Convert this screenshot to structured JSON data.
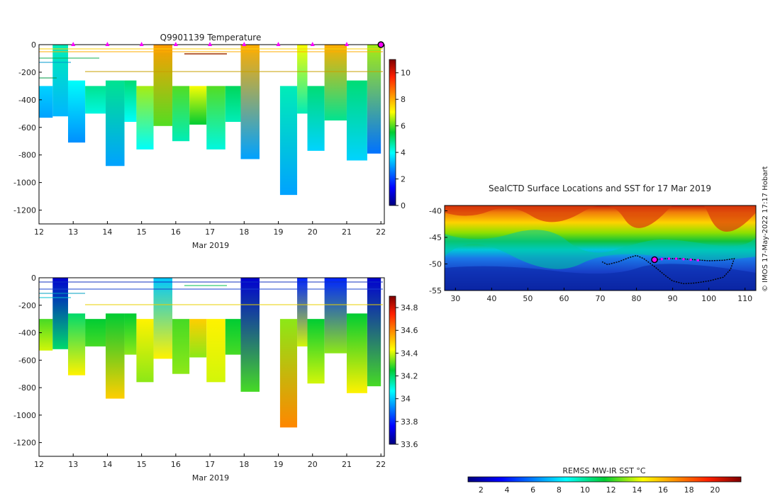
{
  "chart_data": [
    {
      "type": "heatmap",
      "panel": "temperature-section",
      "title": "Q9901139  Temperature",
      "xlabel": "Mar 2019",
      "ylabel": "",
      "xlim": [
        12,
        22.1
      ],
      "ylim": [
        -1300,
        0
      ],
      "xticks": [
        12,
        13,
        14,
        15,
        16,
        17,
        18,
        19,
        20,
        21,
        22
      ],
      "yticks": [
        0,
        -200,
        -400,
        -600,
        -800,
        -1000,
        -1200
      ],
      "colorbar": {
        "min": 0,
        "max": 11,
        "ticks": [
          0,
          2,
          4,
          6,
          8,
          10
        ]
      },
      "profile_markers_day": [
        13,
        14,
        15,
        16,
        17,
        18,
        19,
        20,
        21
      ],
      "current_marker_day": 22,
      "profiles": [
        {
          "x0": 12.0,
          "x1": 12.4,
          "top": -300,
          "bottom": -530,
          "v_top": 3.5,
          "v_bottom": 3.0
        },
        {
          "x0": 12.4,
          "x1": 12.85,
          "top": 0,
          "bottom": -520,
          "v_top": 4.5,
          "v_bottom": 3.2
        },
        {
          "x0": 12.85,
          "x1": 13.35,
          "top": -260,
          "bottom": -710,
          "v_top": 4.0,
          "v_bottom": 2.8
        },
        {
          "x0": 13.35,
          "x1": 13.95,
          "top": -300,
          "bottom": -500,
          "v_top": 4.8,
          "v_bottom": 4.2
        },
        {
          "x0": 13.95,
          "x1": 14.5,
          "top": -260,
          "bottom": -880,
          "v_top": 4.8,
          "v_bottom": 3.0
        },
        {
          "x0": 14.5,
          "x1": 14.85,
          "top": -260,
          "bottom": -560,
          "v_top": 5.0,
          "v_bottom": 4.0
        },
        {
          "x0": 14.85,
          "x1": 15.35,
          "top": -300,
          "bottom": -760,
          "v_top": 6.5,
          "v_bottom": 4.0
        },
        {
          "x0": 15.35,
          "x1": 15.9,
          "top": 0,
          "bottom": -590,
          "v_top": 8.2,
          "v_bottom": 6.0
        },
        {
          "x0": 15.9,
          "x1": 16.4,
          "top": -300,
          "bottom": -700,
          "v_top": 6.0,
          "v_bottom": 4.5
        },
        {
          "x0": 16.4,
          "x1": 16.9,
          "top": -300,
          "bottom": -580,
          "v_top": 7.0,
          "v_bottom": 5.5
        },
        {
          "x0": 16.9,
          "x1": 17.45,
          "top": -300,
          "bottom": -760,
          "v_top": 6.0,
          "v_bottom": 4.2
        },
        {
          "x0": 17.45,
          "x1": 17.9,
          "top": -300,
          "bottom": -560,
          "v_top": 5.2,
          "v_bottom": 4.5
        },
        {
          "x0": 17.9,
          "x1": 18.45,
          "top": 0,
          "bottom": -830,
          "v_top": 8.0,
          "v_bottom": 3.0
        },
        {
          "x0": 19.05,
          "x1": 19.55,
          "top": -300,
          "bottom": -1090,
          "v_top": 4.5,
          "v_bottom": 3.0
        },
        {
          "x0": 19.55,
          "x1": 19.85,
          "top": 0,
          "bottom": -500,
          "v_top": 7.0,
          "v_bottom": 4.5
        },
        {
          "x0": 19.85,
          "x1": 20.35,
          "top": -300,
          "bottom": -770,
          "v_top": 5.0,
          "v_bottom": 3.5
        },
        {
          "x0": 20.35,
          "x1": 21.0,
          "top": 0,
          "bottom": -550,
          "v_top": 8.0,
          "v_bottom": 4.8
        },
        {
          "x0": 21.0,
          "x1": 21.6,
          "top": -260,
          "bottom": -840,
          "v_top": 5.0,
          "v_bottom": 3.5
        },
        {
          "x0": 21.6,
          "x1": 22.0,
          "top": 0,
          "bottom": -790,
          "v_top": 6.5,
          "v_bottom": 2.5
        }
      ]
    },
    {
      "type": "heatmap",
      "panel": "salinity-section",
      "title": "",
      "xlabel": "Mar 2019",
      "ylabel": "",
      "xlim": [
        12,
        22.1
      ],
      "ylim": [
        -1300,
        0
      ],
      "xticks": [
        12,
        13,
        14,
        15,
        16,
        17,
        18,
        19,
        20,
        21,
        22
      ],
      "yticks": [
        0,
        -200,
        -400,
        -600,
        -800,
        -1000,
        -1200
      ],
      "colorbar": {
        "min": 33.6,
        "max": 34.9,
        "ticks": [
          33.6,
          33.8,
          34,
          34.2,
          34.4,
          34.6,
          34.8
        ]
      },
      "profiles": [
        {
          "x0": 12.0,
          "x1": 12.4,
          "top": -300,
          "bottom": -530,
          "v_top": 34.3,
          "v_bottom": 34.4
        },
        {
          "x0": 12.4,
          "x1": 12.85,
          "top": 0,
          "bottom": -520,
          "v_top": 33.7,
          "v_bottom": 34.2
        },
        {
          "x0": 12.85,
          "x1": 13.35,
          "top": -260,
          "bottom": -710,
          "v_top": 34.2,
          "v_bottom": 34.45
        },
        {
          "x0": 13.35,
          "x1": 13.95,
          "top": -300,
          "bottom": -500,
          "v_top": 34.25,
          "v_bottom": 34.3
        },
        {
          "x0": 13.95,
          "x1": 14.5,
          "top": -260,
          "bottom": -880,
          "v_top": 34.25,
          "v_bottom": 34.5
        },
        {
          "x0": 14.5,
          "x1": 14.85,
          "top": -260,
          "bottom": -560,
          "v_top": 34.25,
          "v_bottom": 34.35
        },
        {
          "x0": 14.85,
          "x1": 15.35,
          "top": -300,
          "bottom": -760,
          "v_top": 34.45,
          "v_bottom": 34.35
        },
        {
          "x0": 15.35,
          "x1": 15.9,
          "top": 0,
          "bottom": -590,
          "v_top": 34.0,
          "v_bottom": 34.45
        },
        {
          "x0": 15.9,
          "x1": 16.4,
          "top": -300,
          "bottom": -700,
          "v_top": 34.3,
          "v_bottom": 34.35
        },
        {
          "x0": 16.4,
          "x1": 16.9,
          "top": -300,
          "bottom": -580,
          "v_top": 34.5,
          "v_bottom": 34.35
        },
        {
          "x0": 16.9,
          "x1": 17.45,
          "top": -300,
          "bottom": -760,
          "v_top": 34.45,
          "v_bottom": 34.4
        },
        {
          "x0": 17.45,
          "x1": 17.9,
          "top": -300,
          "bottom": -560,
          "v_top": 34.25,
          "v_bottom": 34.3
        },
        {
          "x0": 17.9,
          "x1": 18.45,
          "top": 0,
          "bottom": -830,
          "v_top": 33.7,
          "v_bottom": 34.3
        },
        {
          "x0": 19.05,
          "x1": 19.55,
          "top": -300,
          "bottom": -1090,
          "v_top": 34.35,
          "v_bottom": 34.6
        },
        {
          "x0": 19.55,
          "x1": 19.85,
          "top": 0,
          "bottom": -500,
          "v_top": 33.8,
          "v_bottom": 34.4
        },
        {
          "x0": 19.85,
          "x1": 20.35,
          "top": -300,
          "bottom": -770,
          "v_top": 34.25,
          "v_bottom": 34.4
        },
        {
          "x0": 20.35,
          "x1": 21.0,
          "top": 0,
          "bottom": -550,
          "v_top": 33.8,
          "v_bottom": 34.35
        },
        {
          "x0": 21.0,
          "x1": 21.6,
          "top": -260,
          "bottom": -840,
          "v_top": 34.25,
          "v_bottom": 34.45
        },
        {
          "x0": 21.6,
          "x1": 22.0,
          "top": 0,
          "bottom": -790,
          "v_top": 33.7,
          "v_bottom": 34.3
        }
      ]
    },
    {
      "type": "heatmap",
      "panel": "sst-map",
      "title": "SealCTD Surface Locations and SST for 17 Mar 2019",
      "xlabel": "",
      "ylabel": "",
      "xlim": [
        27,
        113
      ],
      "ylim": [
        -55,
        -39
      ],
      "xticks": [
        30,
        40,
        50,
        60,
        70,
        80,
        90,
        100,
        110
      ],
      "yticks": [
        -40,
        -45,
        -50,
        -55
      ],
      "colorbar": {
        "label": "REMSS MW-IR SST °C",
        "min": 1,
        "max": 22,
        "ticks": [
          2,
          4,
          6,
          8,
          10,
          12,
          14,
          16,
          18,
          20
        ]
      },
      "track_lon": [
        85,
        88,
        92,
        96,
        100,
        104,
        107,
        106,
        104,
        100,
        96,
        93,
        90,
        88,
        85,
        82,
        80,
        78,
        75,
        72,
        70.5
      ],
      "track_lat": [
        -49.2,
        -49.0,
        -49.0,
        -49.2,
        -49.4,
        -49.3,
        -49.0,
        -51.0,
        -52.5,
        -53.2,
        -53.6,
        -53.7,
        -53.2,
        -52.2,
        -50.5,
        -49.0,
        -48.4,
        -48.8,
        -49.6,
        -50.1,
        -49.6
      ],
      "recent_lon": [
        85,
        87,
        89,
        91,
        93,
        95,
        97
      ],
      "recent_lat": [
        -49.2,
        -49.1,
        -49.0,
        -49.0,
        -49.1,
        -49.2,
        -49.3
      ],
      "current_position": {
        "lon": 85,
        "lat": -49.2
      }
    }
  ],
  "side_label": "© IMOS 17-May-2022 17:17 Hobart",
  "colors": {
    "marker": "#ff00ff",
    "current_edge": "#000000"
  }
}
